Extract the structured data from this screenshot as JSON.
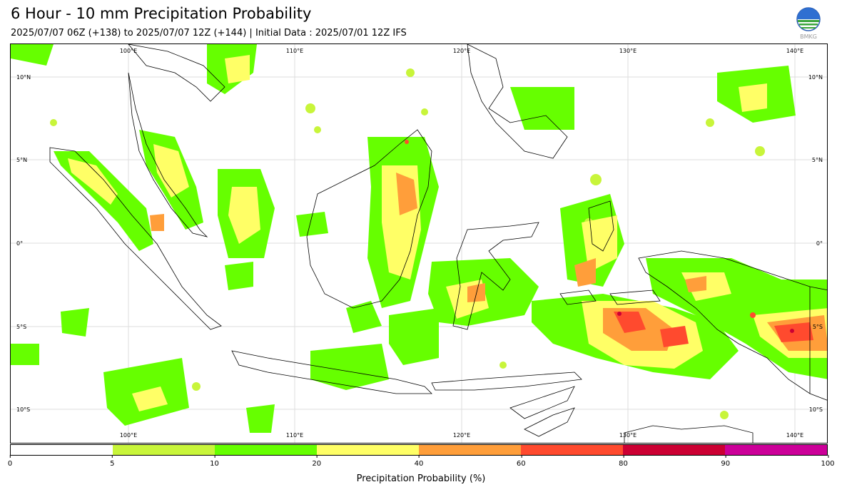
{
  "title": "6 Hour - 10 mm Precipitation Probability",
  "subtitle": "2025/07/07 06Z (+138) to 2025/07/07 12Z (+144) | Initial Data : 2025/07/01 12Z IFS",
  "logo_text": "BMKG",
  "map": {
    "top_lon_labels": [
      "100°E",
      "110°E",
      "120°E",
      "130°E",
      "140°E"
    ],
    "bottom_lon_labels": [
      "100°E",
      "110°E",
      "120°E",
      "130°E",
      "140°E"
    ],
    "left_lat_labels": [
      "10°N",
      "5°N",
      "0°",
      "5°S",
      "10°S"
    ],
    "right_lat_labels": [
      "10°N",
      "5°N",
      "0°",
      "5°S",
      "10°S"
    ]
  },
  "colorbar": {
    "label": "Precipitation Probability (%)",
    "ticks": [
      "0",
      "5",
      "10",
      "20",
      "40",
      "60",
      "80",
      "90",
      "100"
    ],
    "colors": [
      "#ffffff",
      "#c8f53a",
      "#66ff00",
      "#ffff66",
      "#ff9e3a",
      "#ff4a2e",
      "#cc0033",
      "#cc0099"
    ]
  }
}
